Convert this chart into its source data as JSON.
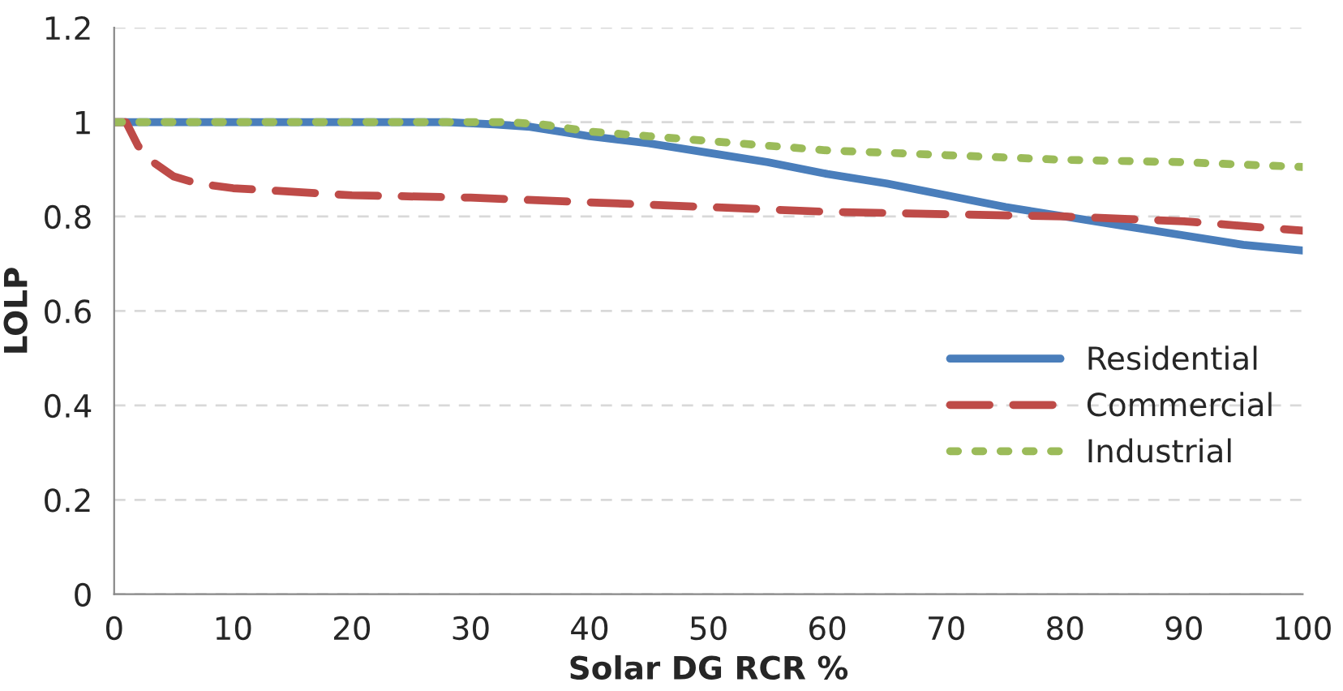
{
  "chart_data": {
    "type": "line",
    "xlabel": "Solar DG RCR %",
    "ylabel": "LOLP",
    "xlim": [
      0,
      100
    ],
    "xticks": [
      0,
      10,
      20,
      30,
      40,
      50,
      60,
      70,
      80,
      90,
      100
    ],
    "ylim": [
      0,
      1.2
    ],
    "yticks": [
      0,
      0.2,
      0.4,
      0.6,
      0.8,
      1,
      1.2
    ],
    "grid": "y",
    "legend": "right",
    "series": [
      {
        "name": "Residential",
        "color": "#4a7ebb",
        "line_style": "solid",
        "x": [
          0,
          10,
          20,
          28,
          32,
          35,
          40,
          45,
          50,
          55,
          60,
          65,
          70,
          75,
          80,
          85,
          90,
          95,
          100
        ],
        "values": [
          1,
          1,
          1,
          1,
          0.995,
          0.99,
          0.97,
          0.955,
          0.935,
          0.915,
          0.89,
          0.87,
          0.845,
          0.82,
          0.8,
          0.78,
          0.76,
          0.74,
          0.728
        ]
      },
      {
        "name": "Commercial",
        "color": "#be4b48",
        "line_style": "dashed",
        "x": [
          0,
          1,
          2,
          3,
          5,
          7,
          10,
          20,
          30,
          40,
          50,
          60,
          70,
          80,
          90,
          100
        ],
        "values": [
          1,
          1,
          0.95,
          0.92,
          0.885,
          0.87,
          0.86,
          0.845,
          0.84,
          0.83,
          0.82,
          0.81,
          0.805,
          0.8,
          0.79,
          0.77
        ]
      },
      {
        "name": "Industrial",
        "color": "#9bbb59",
        "line_style": "dotted",
        "x": [
          0,
          10,
          20,
          30,
          33,
          36,
          40,
          45,
          50,
          55,
          60,
          70,
          80,
          90,
          100
        ],
        "values": [
          1,
          1,
          1,
          1,
          1,
          0.995,
          0.98,
          0.97,
          0.96,
          0.95,
          0.94,
          0.93,
          0.92,
          0.915,
          0.905
        ]
      }
    ]
  }
}
